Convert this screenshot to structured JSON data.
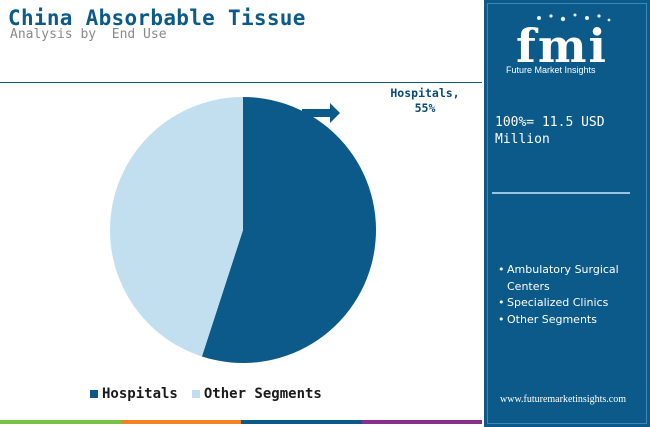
{
  "chart_data": {
    "type": "pie",
    "title": "China Absorbable Tissue",
    "subtitle": "Analysis by  End Use",
    "slices": [
      {
        "name": "Hospitals",
        "value": 55,
        "color": "#0b5a8a"
      },
      {
        "name": "Other Segments",
        "value": 45,
        "color": "#c2dff0"
      }
    ],
    "annotation": {
      "line1": "Hospitals,",
      "line2": "55%"
    },
    "legend_placement": "bottom"
  },
  "legend": [
    {
      "label": "Hospitals",
      "color": "#0b5a8a"
    },
    {
      "label": "Other Segments",
      "color": "#c2dff0"
    }
  ],
  "sidebar": {
    "brand_name": "fmi",
    "brand_tagline": "Future Market Insights",
    "total": "100%= 11.5 USD Million",
    "segments": [
      "Ambulatory Surgical Centers",
      "Specialized Clinics",
      "Other Segments"
    ],
    "website": "www.futuremarketinsights.com"
  },
  "colors": {
    "accent": "#0b5a8a",
    "light": "#c2dff0",
    "bottom_bar": [
      "#7bc143",
      "#f58220",
      "#0b5a8a",
      "#8b2f8f"
    ]
  }
}
